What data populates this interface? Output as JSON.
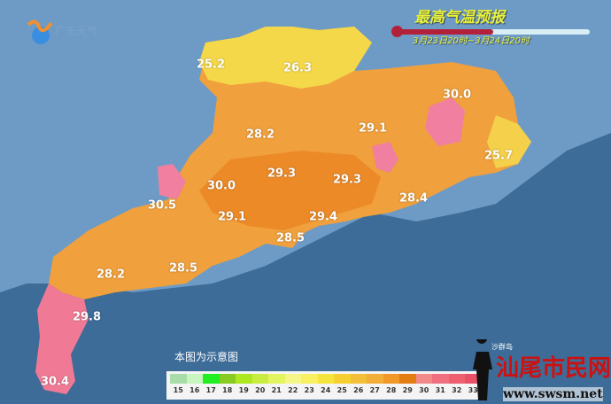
{
  "header": {
    "title": "最高气温预报",
    "date_range": "3月23日20时~3月24日20时",
    "logo_text": "广东天气",
    "thermometer_fill": 0.5
  },
  "note": "本图为示意图",
  "island_label": "沙群岛",
  "watermark": {
    "site_name": "汕尾市民网",
    "url": "www.swsm.net",
    "weibo": "@广东天气"
  },
  "colors": {
    "sea": "#3d6c98",
    "land_outside": "#6e9bc6",
    "t25": "#f5e04a",
    "t26": "#f5c63a",
    "t28": "#f2a43a",
    "t29": "#ef8f2a",
    "t30": "#f08060",
    "t31": "#f07aa0"
  },
  "legend": {
    "ticks": [
      "15",
      "16",
      "17",
      "18",
      "19",
      "20",
      "21",
      "22",
      "23",
      "24",
      "25",
      "26",
      "27",
      "28",
      "29",
      "30",
      "31",
      "32",
      "33"
    ],
    "colors": [
      "#a8dca8",
      "#c8f5c0",
      "#22ee22",
      "#88cc22",
      "#aee820",
      "#c8ec40",
      "#e4f460",
      "#f5f588",
      "#f8f060",
      "#f5e43c",
      "#f5d030",
      "#f2c038",
      "#f2ae38",
      "#f09828",
      "#e47c14",
      "#f28a8a",
      "#f07080",
      "#ee6070",
      "#e85068"
    ]
  },
  "stations": [
    {
      "name": "",
      "value": "25.2"
    },
    {
      "name": "",
      "value": "26.3"
    },
    {
      "name": "",
      "value": "30.0"
    },
    {
      "name": "",
      "value": "28.2"
    },
    {
      "name": "",
      "value": "29.1"
    },
    {
      "name": "",
      "value": "25.7"
    },
    {
      "name": "",
      "value": "29.3"
    },
    {
      "name": "",
      "value": "29.3"
    },
    {
      "name": "",
      "value": "30.0"
    },
    {
      "name": "",
      "value": "28.4"
    },
    {
      "name": "",
      "value": "30.5"
    },
    {
      "name": "",
      "value": "29.1"
    },
    {
      "name": "",
      "value": "29.4"
    },
    {
      "name": "",
      "value": "28.5"
    },
    {
      "name": "",
      "value": "28.2"
    },
    {
      "name": "",
      "value": "28.5"
    },
    {
      "name": "",
      "value": "29.8"
    },
    {
      "name": "",
      "value": "30.4"
    }
  ]
}
